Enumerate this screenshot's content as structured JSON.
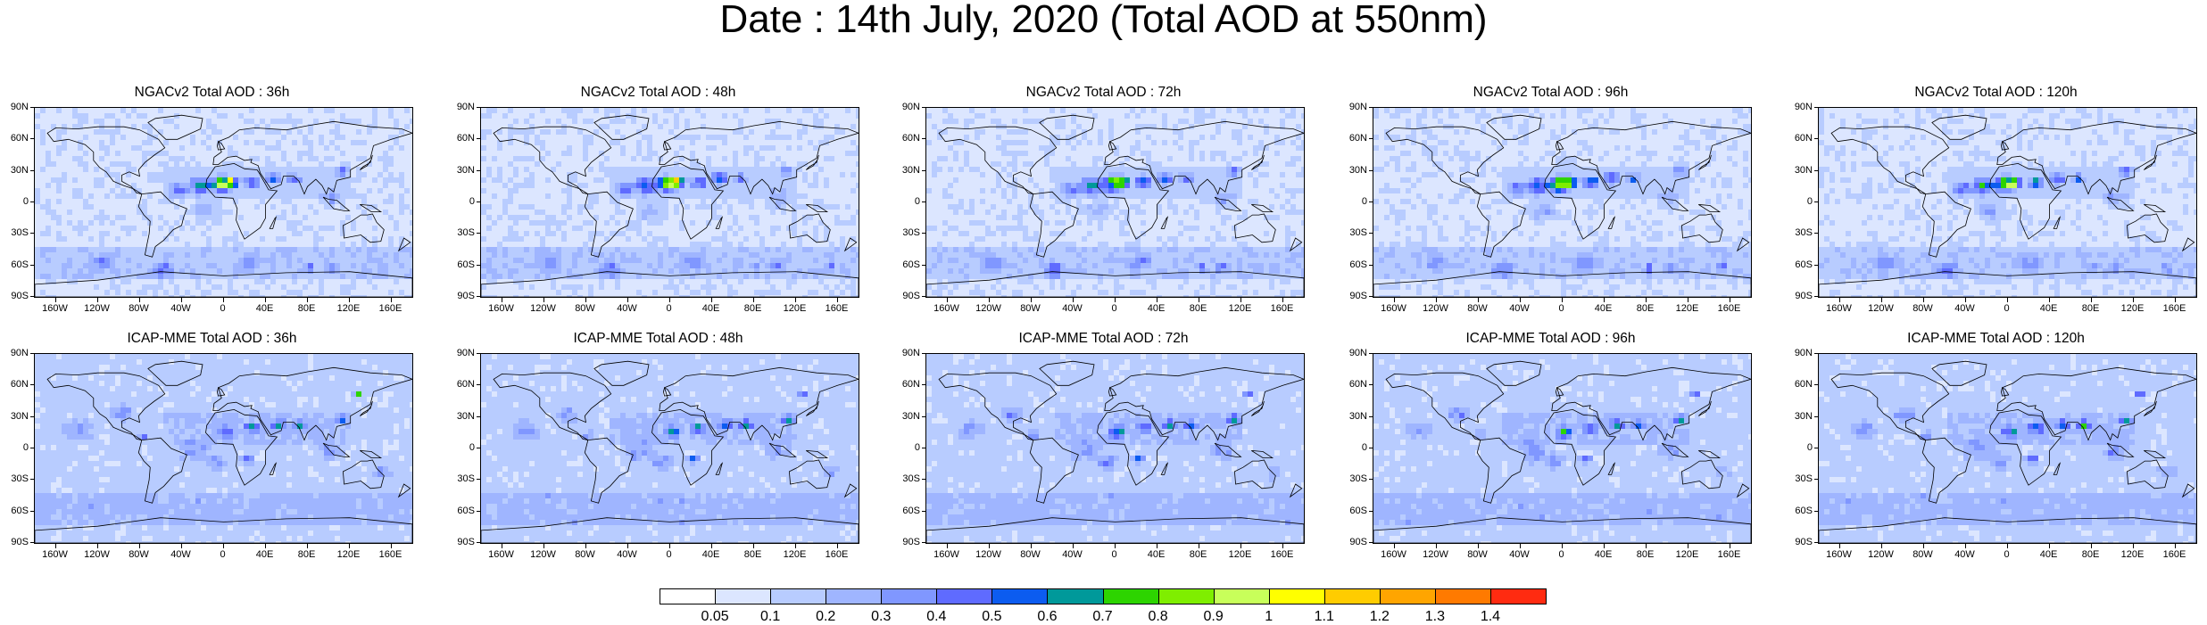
{
  "title": "Date : 14th July, 2020 (Total AOD at 550nm)",
  "lat_labels": [
    "90N",
    "60N",
    "30N",
    "0",
    "30S",
    "60S",
    "90S"
  ],
  "lon_labels": [
    "160W",
    "120W",
    "80W",
    "40W",
    "0",
    "40E",
    "80E",
    "120E",
    "160E"
  ],
  "panels": [
    {
      "title": "NGACv2 Total AOD : 36h",
      "model": "ngac"
    },
    {
      "title": "NGACv2 Total AOD : 48h",
      "model": "ngac"
    },
    {
      "title": "NGACv2 Total AOD : 72h",
      "model": "ngac"
    },
    {
      "title": "NGACv2 Total AOD : 96h",
      "model": "ngac"
    },
    {
      "title": "NGACv2 Total AOD : 120h",
      "model": "ngac"
    },
    {
      "title": "ICAP-MME Total AOD : 36h",
      "model": "icap"
    },
    {
      "title": "ICAP-MME Total AOD : 48h",
      "model": "icap"
    },
    {
      "title": "ICAP-MME Total AOD : 72h",
      "model": "icap"
    },
    {
      "title": "ICAP-MME Total AOD : 96h",
      "model": "icap"
    },
    {
      "title": "ICAP-MME Total AOD : 120h",
      "model": "icap"
    }
  ],
  "colorbar": {
    "labels": [
      "0.05",
      "0.1",
      "0.2",
      "0.3",
      "0.4",
      "0.5",
      "0.6",
      "0.7",
      "0.8",
      "0.9",
      "1",
      "1.1",
      "1.2",
      "1.3",
      "1.4"
    ],
    "colors": [
      "#ffffff",
      "#dce6ff",
      "#b8ccff",
      "#9fb5ff",
      "#8097ff",
      "#5f6bff",
      "#0c5cf0",
      "#00999a",
      "#2dd400",
      "#7fee00",
      "#c8ff5a",
      "#ffff00",
      "#ffcc00",
      "#ffa500",
      "#ff7a00",
      "#ff2b10"
    ]
  }
}
